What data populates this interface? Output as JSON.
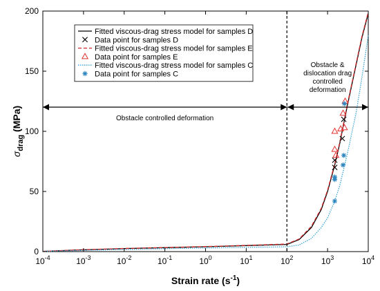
{
  "chart_data": {
    "type": "line",
    "xscale": "log",
    "xlabel_main": "Strain rate (s",
    "xlabel_sup": "-1",
    "xlabel_end": ")",
    "ylabel_sigma": "σ",
    "ylabel_sub": "drag",
    "ylabel_unit": " (MPa)",
    "xlim": [
      0.0001,
      10000
    ],
    "ylim": [
      0,
      200
    ],
    "x_tick_exponents": [
      "-4",
      "-3",
      "-2",
      "-1",
      "0",
      "1",
      "2",
      "3",
      "4"
    ],
    "x_tick_base": "10",
    "y_ticks": [
      "0",
      "50",
      "100",
      "150",
      "200"
    ],
    "grid": false,
    "legend_position": "upper-left",
    "series": [
      {
        "name": "Fitted viscous-drag stress model for samples D",
        "kind": "line",
        "color": "#000000",
        "style": "solid",
        "x": [
          0.0001,
          0.001,
          0.01,
          0.1,
          1,
          10,
          100,
          200,
          400,
          700,
          1000,
          1500,
          2000,
          3000,
          5000,
          7000,
          10000
        ],
        "y": [
          0.2,
          1.5,
          2.5,
          3.3,
          4.0,
          5.0,
          6.0,
          10,
          20,
          35,
          50,
          72,
          90,
          120,
          155,
          178,
          198
        ]
      },
      {
        "name": "Data point for samples D",
        "kind": "points",
        "marker": "x",
        "color": "#000000",
        "x": [
          1500,
          1500,
          2300,
          2500
        ],
        "y": [
          70,
          76,
          94,
          110
        ]
      },
      {
        "name": "Fitted viscous-drag stress model for samples E",
        "kind": "line",
        "color": "#d62728",
        "style": "dashed",
        "x": [
          0.0001,
          0.001,
          0.01,
          0.1,
          1,
          10,
          100,
          200,
          400,
          700,
          1000,
          1500,
          2000,
          3000,
          5000,
          7000,
          10000
        ],
        "y": [
          0.2,
          1.6,
          2.6,
          3.4,
          4.2,
          5.2,
          6.3,
          10.5,
          21,
          36,
          51,
          73,
          91,
          121,
          156,
          179,
          199
        ]
      },
      {
        "name": "Data point for samples E",
        "kind": "points",
        "marker": "triangle",
        "color": "#e0312f",
        "x": [
          1500,
          1500,
          1600,
          2100,
          2400,
          2600,
          2700
        ],
        "y": [
          100,
          85,
          80,
          102,
          115,
          103,
          125
        ]
      },
      {
        "name": "Fitted viscous-drag stress model for samples C",
        "kind": "line",
        "color": "#3aa5d8",
        "style": "dotted",
        "x": [
          0.0001,
          0.001,
          0.01,
          0.1,
          1,
          10,
          100,
          200,
          400,
          700,
          1000,
          1500,
          2000,
          3000,
          5000,
          7000,
          10000
        ],
        "y": [
          0.1,
          1.0,
          1.8,
          2.4,
          3.0,
          3.5,
          4.0,
          5.5,
          11,
          20,
          28,
          42,
          55,
          80,
          115,
          145,
          180
        ]
      },
      {
        "name": "Data point for samples C",
        "kind": "points",
        "marker": "star",
        "color": "#2e86c1",
        "x": [
          1500,
          1500,
          1500,
          2400,
          2500,
          2600
        ],
        "y": [
          42,
          60,
          62,
          72,
          80,
          123
        ]
      }
    ],
    "annotations": {
      "region1": "Obstacle controlled deformation",
      "region2_lines": [
        "Obstacle &",
        "dislocation drag",
        "controlled",
        "deformation"
      ]
    }
  }
}
